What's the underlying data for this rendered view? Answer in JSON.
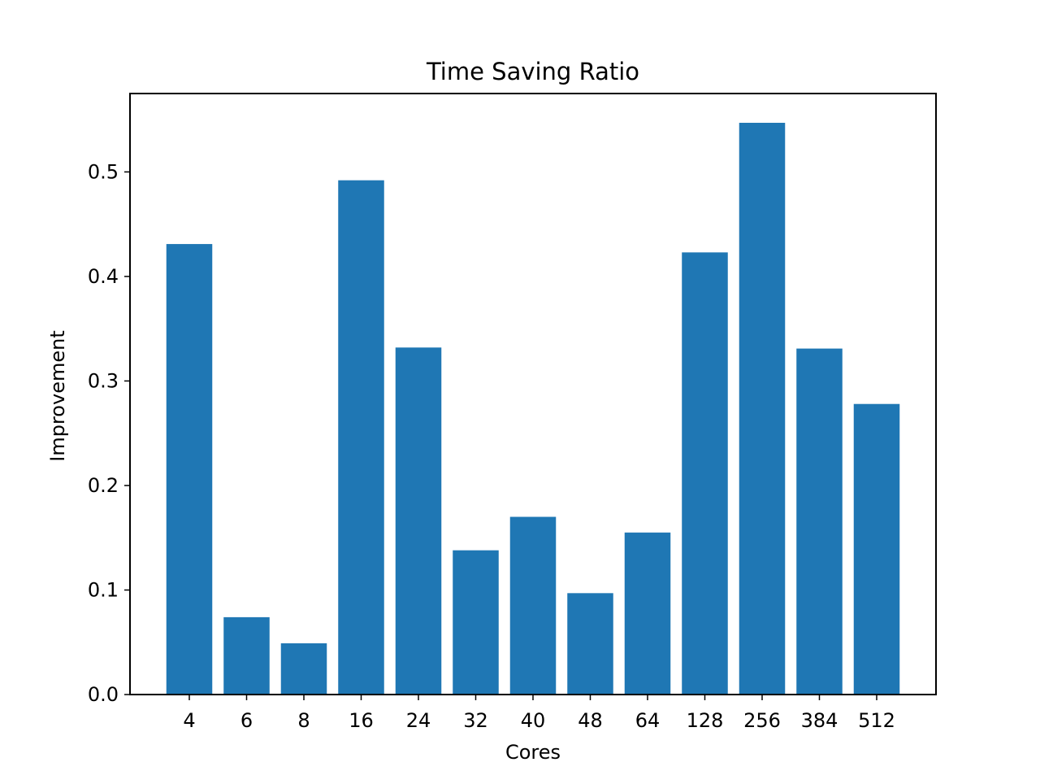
{
  "chart_data": {
    "type": "bar",
    "title": "Time Saving Ratio",
    "xlabel": "Cores",
    "ylabel": "Improvement",
    "categories": [
      "4",
      "6",
      "8",
      "16",
      "24",
      "32",
      "40",
      "48",
      "64",
      "128",
      "256",
      "384",
      "512"
    ],
    "values": [
      0.431,
      0.074,
      0.049,
      0.492,
      0.332,
      0.138,
      0.17,
      0.097,
      0.155,
      0.423,
      0.547,
      0.331,
      0.278
    ],
    "ylim": [
      0.0,
      0.575
    ],
    "yticks": [
      0.0,
      0.1,
      0.2,
      0.3,
      0.4,
      0.5
    ],
    "ytick_labels": [
      "0.0",
      "0.1",
      "0.2",
      "0.3",
      "0.4",
      "0.5"
    ],
    "bar_color": "#1f77b4",
    "grid": false,
    "legend": "none"
  }
}
